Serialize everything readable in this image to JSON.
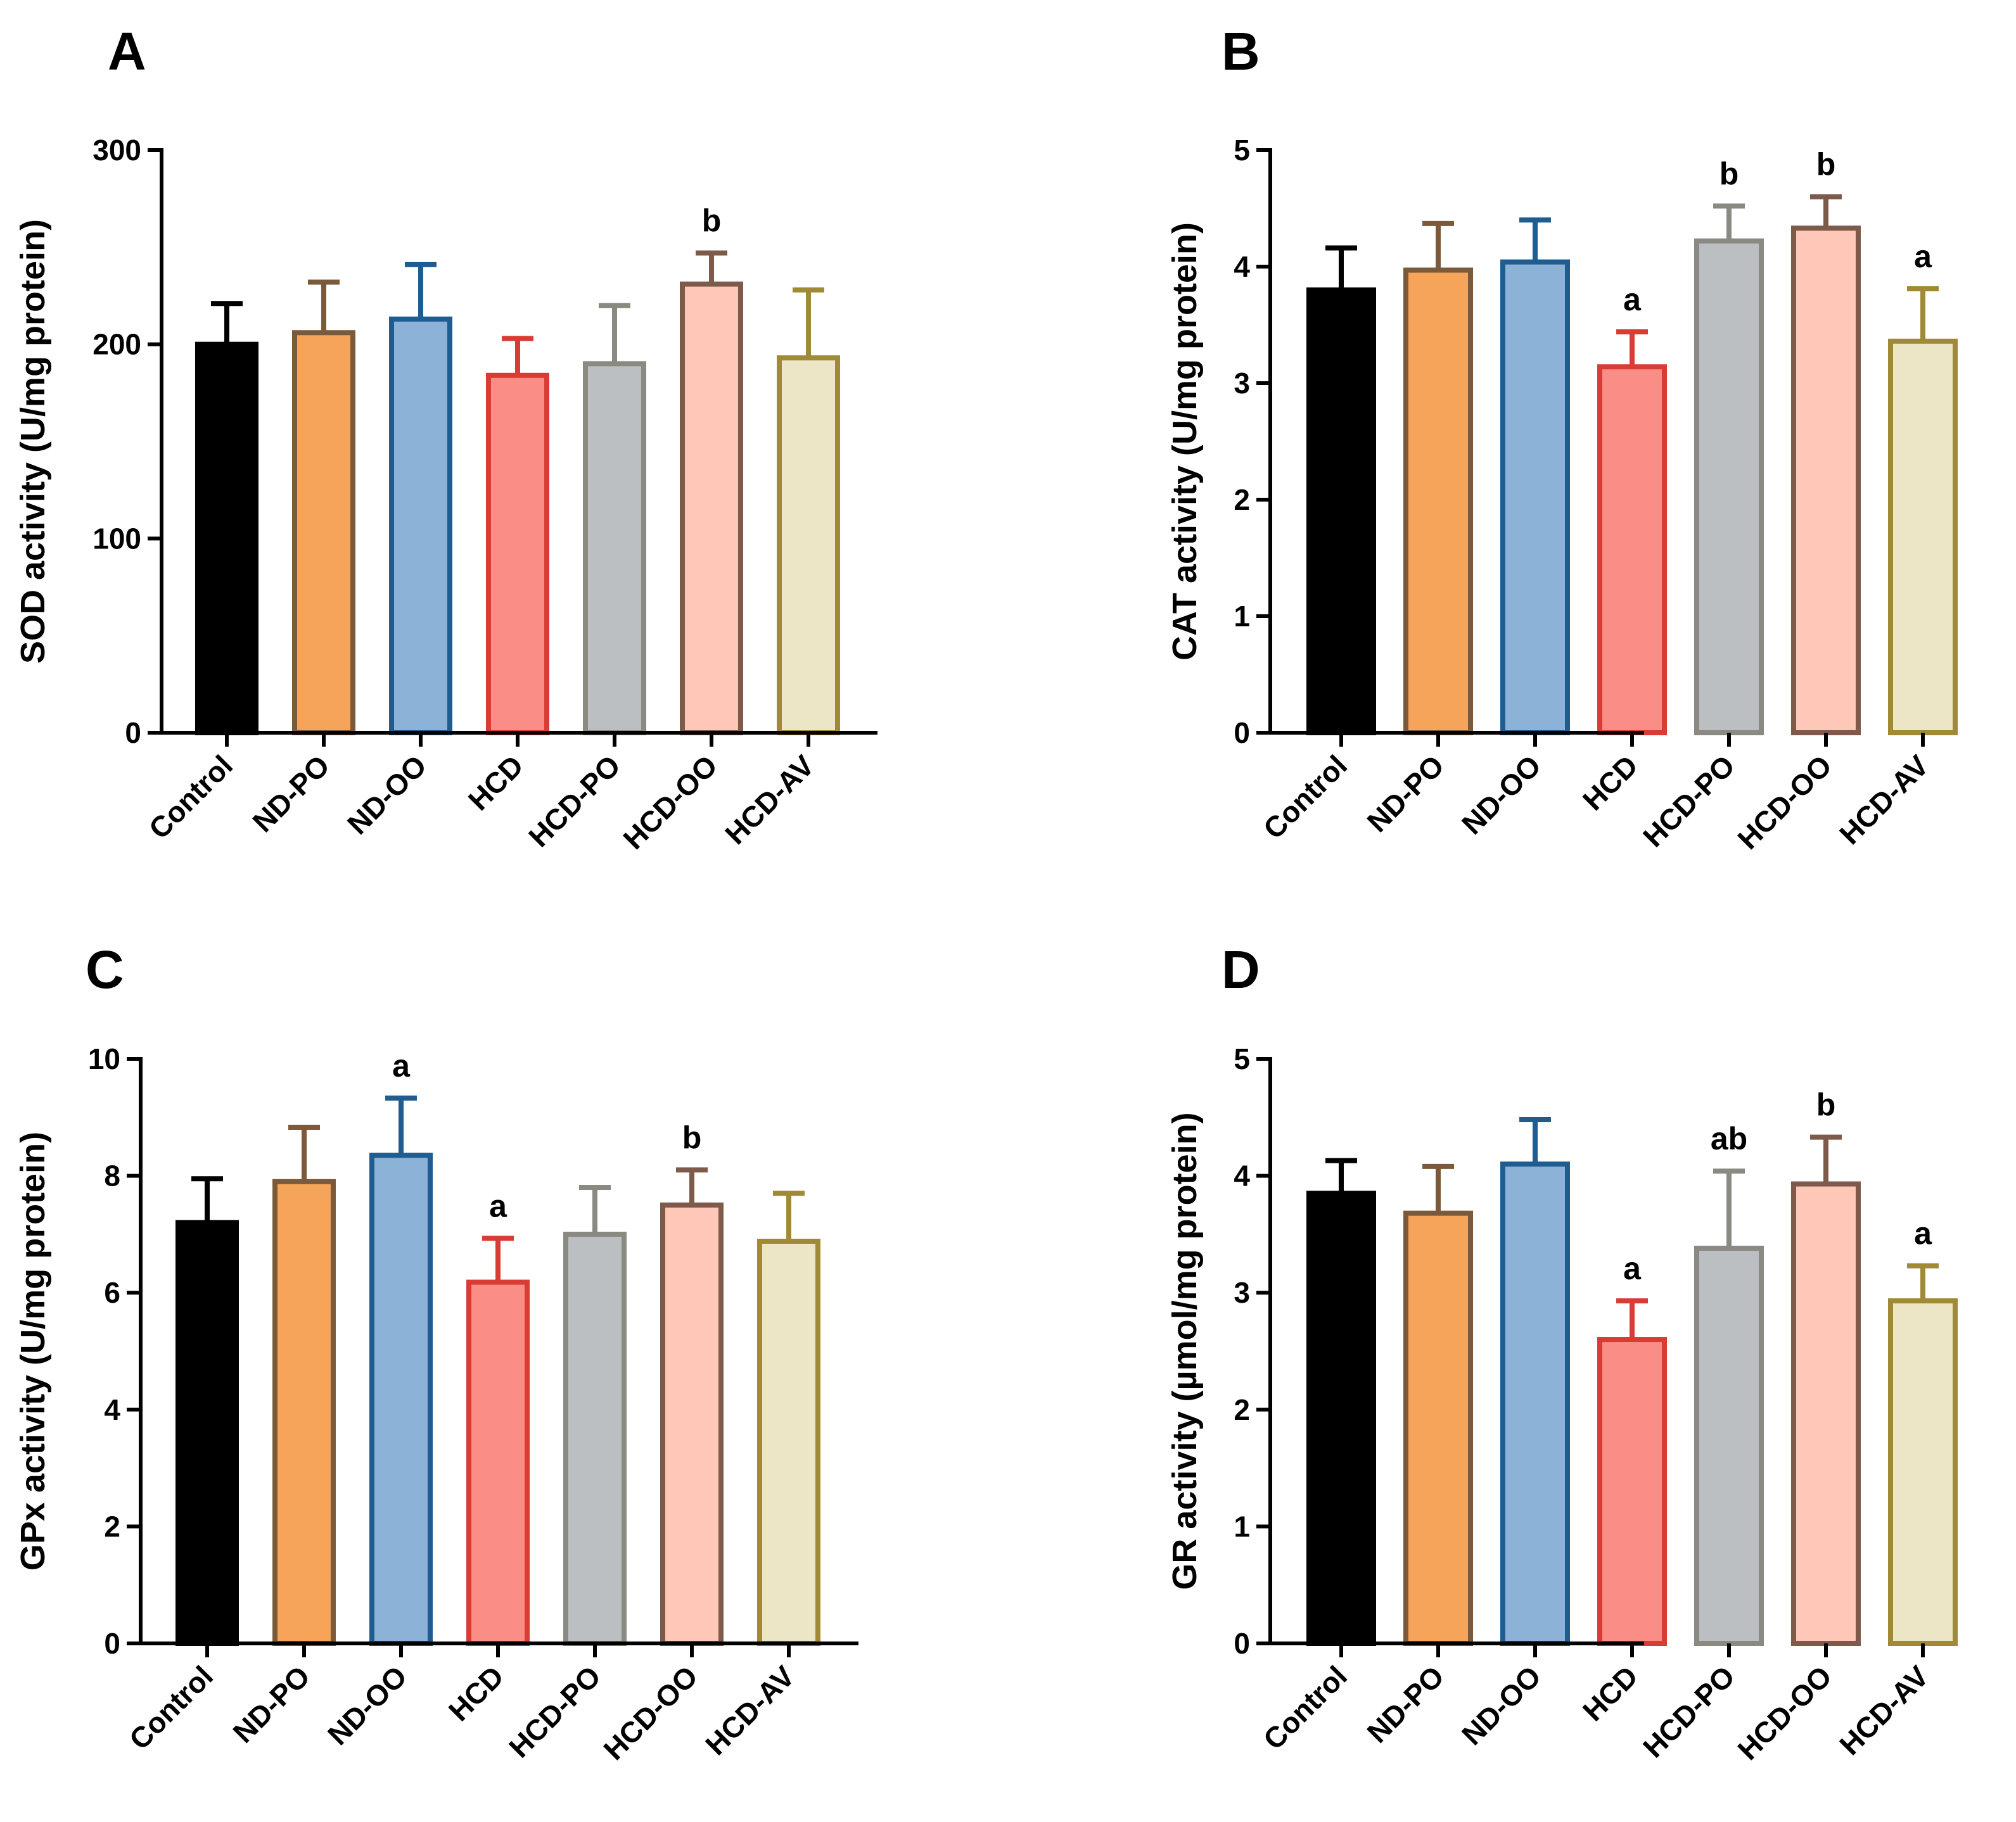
{
  "chart_data": [
    {
      "type": "bar",
      "panel": "A",
      "ylabel": "SOD activity (U/mg protein)",
      "ylim": [
        0,
        300
      ],
      "yticks": [
        0,
        100,
        200,
        300
      ],
      "categories": [
        "Control",
        "ND-PO",
        "ND-OO",
        "HCD",
        "HCD-PO",
        "HCD-OO",
        "HCD-AV"
      ],
      "values": [
        200,
        206,
        213,
        184,
        190,
        231,
        193
      ],
      "errors": [
        21,
        26,
        28,
        19,
        30,
        16,
        35
      ],
      "significance": [
        "",
        "",
        "",
        "",
        "",
        "b",
        ""
      ]
    },
    {
      "type": "bar",
      "panel": "B",
      "ylabel": "CAT activity (U/mg protein)",
      "ylim": [
        0,
        5
      ],
      "yticks": [
        0,
        1,
        2,
        3,
        4,
        5
      ],
      "categories": [
        "Control",
        "ND-PO",
        "ND-OO",
        "HCD",
        "HCD-PO",
        "HCD-OO",
        "HCD-AV"
      ],
      "values": [
        3.8,
        3.97,
        4.04,
        3.14,
        4.22,
        4.33,
        3.36
      ],
      "errors": [
        0.36,
        0.4,
        0.36,
        0.3,
        0.3,
        0.27,
        0.45
      ],
      "significance": [
        "",
        "",
        "",
        "a",
        "b",
        "b",
        "a"
      ]
    },
    {
      "type": "bar",
      "panel": "C",
      "ylabel": "GPx activity (U/mg protein)",
      "ylim": [
        0,
        10
      ],
      "yticks": [
        0,
        2,
        4,
        6,
        8,
        10
      ],
      "categories": [
        "Control",
        "ND-PO",
        "ND-OO",
        "HCD",
        "HCD-PO",
        "HCD-OO",
        "HCD-AV"
      ],
      "values": [
        7.2,
        7.9,
        8.35,
        6.18,
        7.0,
        7.5,
        6.88
      ],
      "errors": [
        0.75,
        0.93,
        0.98,
        0.75,
        0.8,
        0.6,
        0.82
      ],
      "significance": [
        "",
        "",
        "a",
        "a",
        "",
        "b",
        ""
      ]
    },
    {
      "type": "bar",
      "panel": "D",
      "ylabel": "GR activity (µmol/mg protein)",
      "ylim": [
        0,
        5
      ],
      "yticks": [
        0,
        1,
        2,
        3,
        4,
        5
      ],
      "categories": [
        "Control",
        "ND-PO",
        "ND-OO",
        "HCD",
        "HCD-PO",
        "HCD-OO",
        "HCD-AV"
      ],
      "values": [
        3.85,
        3.68,
        4.1,
        2.6,
        3.38,
        3.93,
        2.93
      ],
      "errors": [
        0.28,
        0.4,
        0.38,
        0.33,
        0.66,
        0.4,
        0.3
      ],
      "significance": [
        "",
        "",
        "",
        "a",
        "ab",
        "b",
        "a"
      ]
    }
  ],
  "colors": {
    "fills": [
      "#000000",
      "#f5a45a",
      "#8db2d8",
      "#fa8e86",
      "#bcbfc2",
      "#fec7b8",
      "#ece6c6"
    ],
    "strokes": [
      "#000000",
      "#7a5a3a",
      "#1f5c8f",
      "#d93b35",
      "#8a8a82",
      "#7d5a4a",
      "#a08a35"
    ]
  }
}
